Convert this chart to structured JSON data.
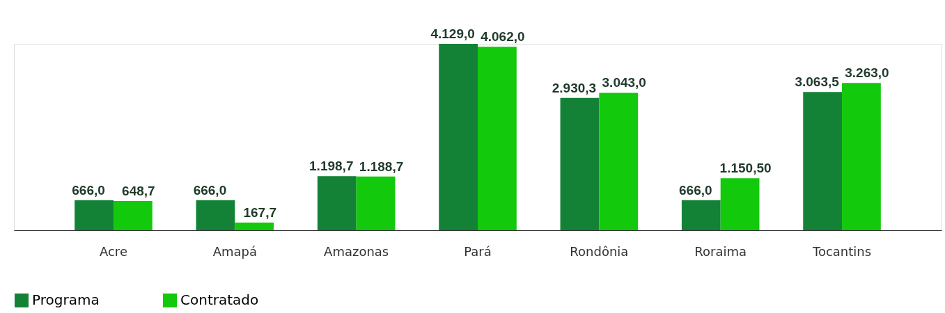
{
  "chart_data": {
    "type": "bar",
    "categories": [
      "Acre",
      "Amapá",
      "Amazonas",
      "Pará",
      "Rondônia",
      "Roraima",
      "Tocantins"
    ],
    "series": [
      {
        "name": "Programa",
        "color": "#148236",
        "values": [
          666.0,
          666.0,
          1198.7,
          4129.0,
          2930.3,
          666.0,
          3063.5
        ],
        "value_labels": [
          "666,0",
          "666,0",
          "1.198,7",
          "4.129,0",
          "2.930,3",
          "666,0",
          "3.063,5"
        ]
      },
      {
        "name": "Contratado",
        "color": "#12c90c",
        "values": [
          648.7,
          167.7,
          1188.7,
          4062.0,
          3043.0,
          1150.5,
          3263.0
        ],
        "value_labels": [
          "648,7",
          "167,7",
          "1.188,7",
          "4.062,0",
          "3.043,0",
          "1.150,50",
          "3.263,0"
        ]
      }
    ],
    "legend": "bottom"
  }
}
